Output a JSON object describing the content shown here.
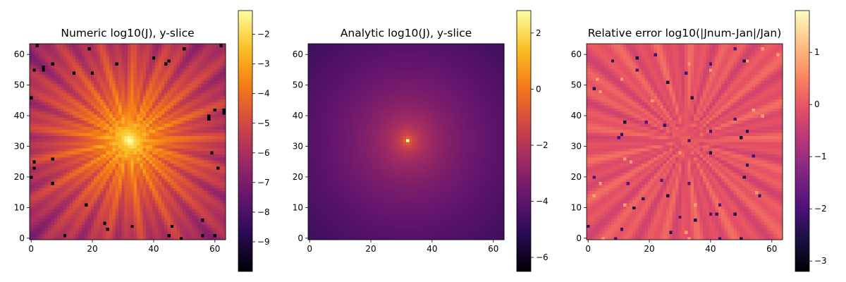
{
  "chart_data": [
    {
      "type": "heatmap",
      "title": "Numeric log10(J), y-slice",
      "xlabel": "",
      "ylabel": "",
      "grid_size": 64,
      "xlim": [
        0,
        63
      ],
      "ylim": [
        0,
        63
      ],
      "x_ticks": [
        0,
        20,
        40,
        60
      ],
      "y_ticks": [
        0,
        10,
        20,
        30,
        40,
        50,
        60
      ],
      "colormap": "inferno",
      "peak": [
        32,
        32
      ],
      "peak_value": -1.2,
      "falloff": "log10(1/r^2) with radial streak artifacts",
      "color_range": [
        -10,
        -1.2
      ],
      "colorbar_ticks": [
        -2,
        -3,
        -4,
        -5,
        -6,
        -7,
        -8,
        -9
      ],
      "colorbar_min": -10,
      "colorbar_max": -1.2,
      "has_radial_streaks": true,
      "has_dark_outlier_cells": true
    },
    {
      "type": "heatmap",
      "title": "Analytic log10(J), y-slice",
      "xlabel": "",
      "ylabel": "",
      "grid_size": 64,
      "xlim": [
        0,
        63
      ],
      "ylim": [
        0,
        63
      ],
      "x_ticks": [
        0,
        20,
        40,
        60
      ],
      "y_ticks": [
        0,
        10,
        20,
        30,
        40,
        50,
        60
      ],
      "colormap": "inferno",
      "peak": [
        32,
        32
      ],
      "peak_value": 2.8,
      "falloff": "log10(1/r^2), smooth",
      "color_range": [
        -6.5,
        2.8
      ],
      "colorbar_ticks": [
        2,
        0,
        -2,
        -4,
        -6
      ],
      "colorbar_min": -6.5,
      "colorbar_max": 2.8,
      "has_radial_streaks": false,
      "has_dark_outlier_cells": false
    },
    {
      "type": "heatmap",
      "title": "Relative error log10(|Jnum-Jan|/Jan)",
      "xlabel": "",
      "ylabel": "",
      "grid_size": 64,
      "xlim": [
        0,
        63
      ],
      "ylim": [
        0,
        63
      ],
      "x_ticks": [
        0,
        20,
        40,
        60
      ],
      "y_ticks": [
        0,
        10,
        20,
        30,
        40,
        50,
        60
      ],
      "colormap": "magma",
      "peak": [
        32,
        32
      ],
      "peak_value": 0.1,
      "falloff": "approximately constant near -0.05 with radial streaks",
      "color_range": [
        -3.2,
        1.8
      ],
      "colorbar_ticks": [
        1,
        0,
        -1,
        -2,
        -3
      ],
      "colorbar_min": -3.2,
      "colorbar_max": 1.8,
      "has_radial_streaks": true,
      "has_dark_outlier_cells": true
    }
  ]
}
